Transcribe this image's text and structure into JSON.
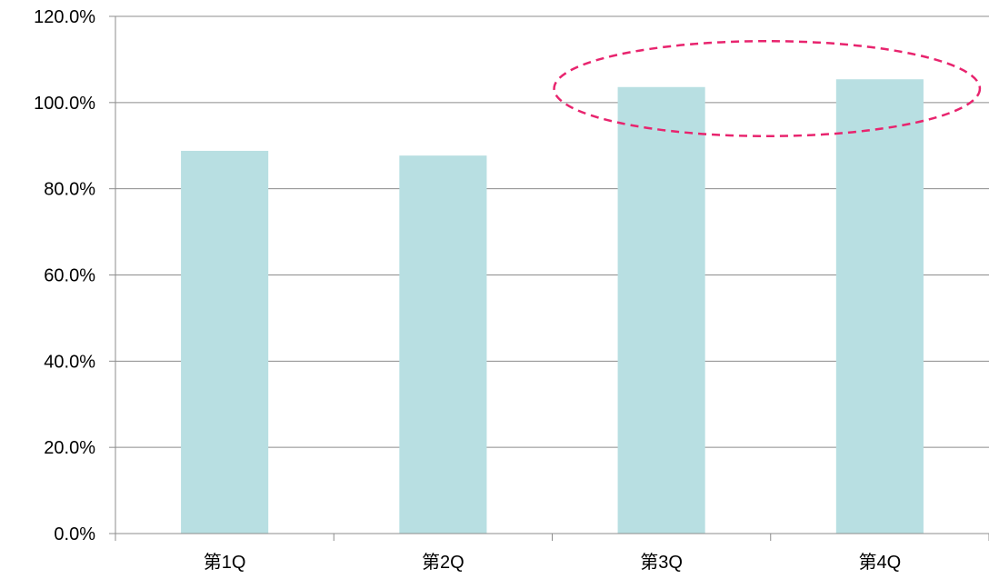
{
  "chart_data": {
    "type": "bar",
    "categories": [
      "第1Q",
      "第2Q",
      "第3Q",
      "第4Q"
    ],
    "values": [
      88.8,
      87.7,
      103.6,
      105.4
    ],
    "ylim": [
      0,
      120
    ],
    "yticks": [
      0,
      20,
      40,
      60,
      80,
      100,
      120
    ],
    "ytick_labels": [
      "0.0%",
      "20.0%",
      "40.0%",
      "60.0%",
      "80.0%",
      "100.0%",
      "120.0%"
    ],
    "grid": true,
    "legend": "none",
    "highlight": {
      "shape": "dashed-ellipse",
      "categories": [
        "第3Q",
        "第4Q"
      ]
    },
    "colors": {
      "bar": "#b8dfe2",
      "grid": "#8c8c8c",
      "highlight": "#e8246e"
    }
  }
}
